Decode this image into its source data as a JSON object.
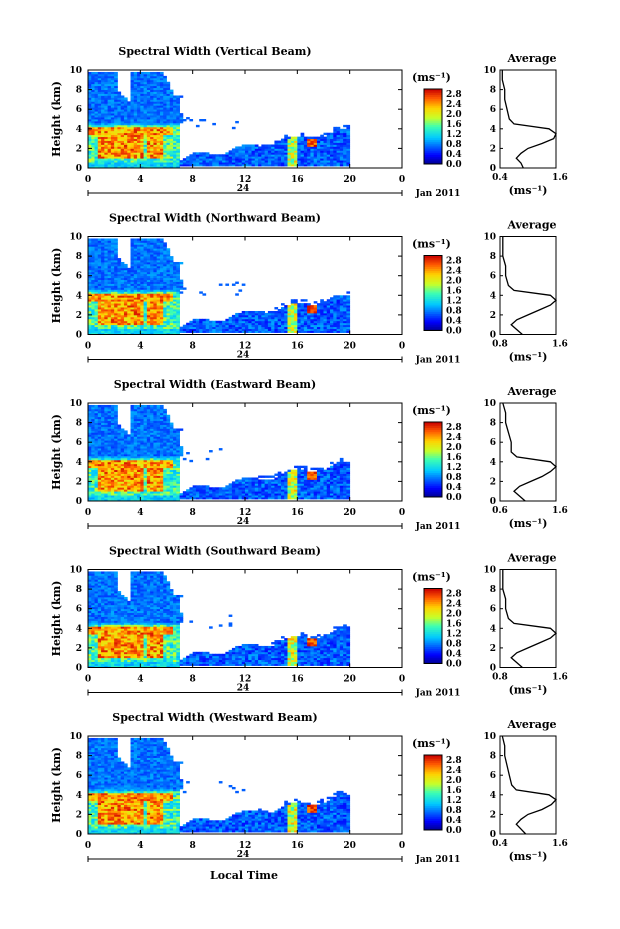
{
  "figure": {
    "xlabel": "Local Time",
    "date_label": "Jan 2011",
    "day_label": "24"
  },
  "chart_data": [
    {
      "type": "heatmap",
      "title": "Spectral Width (Vertical Beam)",
      "ylabel": "Height (km)",
      "xlim": [
        0,
        24
      ],
      "ylim": [
        0,
        10
      ],
      "x_ticks": [
        "0",
        "4",
        "8",
        "12",
        "16",
        "20",
        "0"
      ],
      "y_ticks": [
        "0",
        "2",
        "4",
        "6",
        "8",
        "10"
      ],
      "colorbar": {
        "unit": "(ms⁻¹)",
        "ticks": [
          "0.0",
          "0.4",
          "0.8",
          "1.2",
          "1.6",
          "2.0",
          "2.4",
          "2.8"
        ],
        "range": [
          0,
          3.0
        ]
      },
      "profile": {
        "title": "Average",
        "xlabel": "(ms⁻¹)",
        "x_ticks": [
          "0.4",
          "1.6"
        ],
        "xlim": [
          0.4,
          1.6
        ],
        "heights": [
          0,
          0.5,
          1,
          1.5,
          2,
          2.5,
          3,
          3.5,
          4,
          4.5,
          5,
          6,
          7,
          8,
          9,
          10
        ],
        "values": [
          0.9,
          0.85,
          0.75,
          0.85,
          1.0,
          1.3,
          1.55,
          1.6,
          1.45,
          0.7,
          0.6,
          0.55,
          0.5,
          0.5,
          0.45,
          0.45
        ]
      }
    },
    {
      "type": "heatmap",
      "title": "Spectral Width (Northward Beam)",
      "ylabel": "Height (km)",
      "xlim": [
        0,
        24
      ],
      "ylim": [
        0,
        10
      ],
      "x_ticks": [
        "0",
        "4",
        "8",
        "12",
        "16",
        "20",
        "0"
      ],
      "y_ticks": [
        "0",
        "2",
        "4",
        "6",
        "8",
        "10"
      ],
      "colorbar": {
        "unit": "(ms⁻¹)",
        "ticks": [
          "0.0",
          "0.4",
          "0.8",
          "1.2",
          "1.6",
          "2.0",
          "2.4",
          "2.8"
        ],
        "range": [
          0,
          3.0
        ]
      },
      "profile": {
        "title": "Average",
        "xlabel": "(ms⁻¹)",
        "x_ticks": [
          "0.8",
          "1.6"
        ],
        "xlim": [
          0.6,
          1.6
        ],
        "heights": [
          0,
          0.5,
          1,
          1.5,
          2,
          2.5,
          3,
          3.5,
          4,
          4.5,
          5,
          6,
          7,
          8,
          9,
          10
        ],
        "values": [
          1.0,
          0.9,
          0.8,
          0.9,
          1.1,
          1.3,
          1.5,
          1.6,
          1.5,
          0.85,
          0.75,
          0.7,
          0.7,
          0.65,
          0.65,
          0.65
        ]
      }
    },
    {
      "type": "heatmap",
      "title": "Spectral Width (Eastward Beam)",
      "ylabel": "Height (km)",
      "xlim": [
        0,
        24
      ],
      "ylim": [
        0,
        10
      ],
      "x_ticks": [
        "0",
        "4",
        "8",
        "12",
        "16",
        "20",
        "0"
      ],
      "y_ticks": [
        "0",
        "2",
        "4",
        "6",
        "8",
        "10"
      ],
      "colorbar": {
        "unit": "(ms⁻¹)",
        "ticks": [
          "0.0",
          "0.4",
          "0.8",
          "1.2",
          "1.6",
          "2.0",
          "2.4",
          "2.8"
        ],
        "range": [
          0,
          3.0
        ]
      },
      "profile": {
        "title": "Average",
        "xlabel": "(ms⁻¹)",
        "x_ticks": [
          "0.6",
          "1.6"
        ],
        "xlim": [
          0.6,
          1.6
        ],
        "heights": [
          0,
          0.5,
          1,
          1.5,
          2,
          2.5,
          3,
          3.5,
          4,
          4.5,
          5,
          6,
          7,
          8,
          9,
          10
        ],
        "values": [
          1.05,
          0.95,
          0.85,
          0.95,
          1.15,
          1.35,
          1.5,
          1.6,
          1.5,
          0.9,
          0.8,
          0.8,
          0.75,
          0.7,
          0.7,
          0.65
        ]
      }
    },
    {
      "type": "heatmap",
      "title": "Spectral Width (Southward Beam)",
      "ylabel": "Height (km)",
      "xlim": [
        0,
        24
      ],
      "ylim": [
        0,
        10
      ],
      "x_ticks": [
        "0",
        "4",
        "8",
        "12",
        "16",
        "20",
        "0"
      ],
      "y_ticks": [
        "0",
        "2",
        "4",
        "6",
        "8",
        "10"
      ],
      "colorbar": {
        "unit": "(ms⁻¹)",
        "ticks": [
          "0.0",
          "0.4",
          "0.8",
          "1.2",
          "1.6",
          "2.0",
          "2.4",
          "2.8"
        ],
        "range": [
          0,
          3.0
        ]
      },
      "profile": {
        "title": "Average",
        "xlabel": "(ms⁻¹)",
        "x_ticks": [
          "0.8",
          "1.6"
        ],
        "xlim": [
          0.6,
          1.6
        ],
        "heights": [
          0,
          0.5,
          1,
          1.5,
          2,
          2.5,
          3,
          3.5,
          4,
          4.5,
          5,
          6,
          7,
          8,
          9,
          10
        ],
        "values": [
          1.0,
          0.9,
          0.8,
          0.9,
          1.1,
          1.3,
          1.5,
          1.6,
          1.5,
          0.85,
          0.75,
          0.7,
          0.7,
          0.65,
          0.65,
          0.65
        ]
      }
    },
    {
      "type": "heatmap",
      "title": "Spectral Width (Westward Beam)",
      "ylabel": "Height (km)",
      "xlim": [
        0,
        24
      ],
      "ylim": [
        0,
        10
      ],
      "x_ticks": [
        "0",
        "4",
        "8",
        "12",
        "16",
        "20",
        "0"
      ],
      "y_ticks": [
        "0",
        "2",
        "4",
        "6",
        "8",
        "10"
      ],
      "colorbar": {
        "unit": "(ms⁻¹)",
        "ticks": [
          "0.0",
          "0.4",
          "0.8",
          "1.2",
          "1.6",
          "2.0",
          "2.4",
          "2.8"
        ],
        "range": [
          0,
          3.0
        ]
      },
      "profile": {
        "title": "Average",
        "xlabel": "(ms⁻¹)",
        "x_ticks": [
          "0.4",
          "1.6"
        ],
        "xlim": [
          0.4,
          1.6
        ],
        "heights": [
          0,
          0.5,
          1,
          1.5,
          2,
          2.5,
          3,
          3.5,
          4,
          4.5,
          5,
          6,
          7,
          8,
          9,
          10
        ],
        "values": [
          0.95,
          0.85,
          0.75,
          0.85,
          1.0,
          1.3,
          1.5,
          1.6,
          1.45,
          0.75,
          0.65,
          0.6,
          0.55,
          0.5,
          0.5,
          0.45
        ]
      }
    }
  ]
}
